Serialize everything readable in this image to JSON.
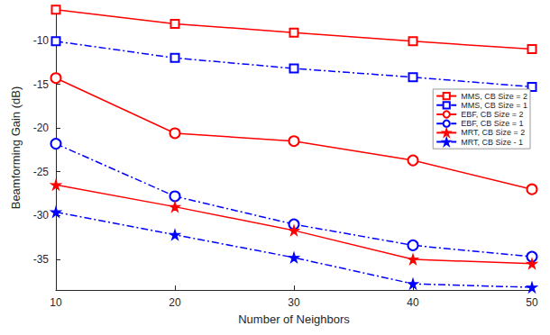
{
  "chart_data": {
    "type": "line",
    "x_label": "Number of Neighbors",
    "y_label": "Beamforming Gain (dB)",
    "x": [
      10,
      20,
      30,
      40,
      50
    ],
    "xlim": [
      10,
      50
    ],
    "xticks": [
      10,
      20,
      30,
      40,
      50
    ],
    "ylim": [
      -38.5,
      -6
    ],
    "yticks": [
      -35,
      -30,
      -25,
      -20,
      -15,
      -10
    ],
    "grid": false,
    "legend": "right",
    "series": [
      {
        "name": "MMS, CB Size = 2",
        "color": "#ff0000",
        "marker": "square",
        "line_style": "solid",
        "values": [
          -6.5,
          -8.1,
          -9.1,
          -10.1,
          -11.0
        ]
      },
      {
        "name": "MMS, CB Size = 1",
        "color": "#0000ff",
        "marker": "square",
        "line_style": "dashdot",
        "values": [
          -10.1,
          -12.0,
          -13.2,
          -14.2,
          -15.3
        ]
      },
      {
        "name": "EBF, CB Size = 2",
        "color": "#ff0000",
        "marker": "circle",
        "line_style": "solid",
        "values": [
          -14.3,
          -20.6,
          -21.5,
          -23.7,
          -27.0
        ]
      },
      {
        "name": "EBF, CB Size = 1",
        "color": "#0000ff",
        "marker": "circle",
        "line_style": "dashdot",
        "values": [
          -21.8,
          -27.8,
          -31.0,
          -33.4,
          -34.7
        ]
      },
      {
        "name": "MRT, CB Size = 2",
        "color": "#ff0000",
        "marker": "star",
        "line_style": "solid",
        "values": [
          -26.5,
          -29.0,
          -31.7,
          -35.0,
          -35.5
        ]
      },
      {
        "name": "MRT, CB Size - 1",
        "color": "#0000ff",
        "marker": "star",
        "line_style": "dashdot",
        "values": [
          -29.6,
          -32.2,
          -34.8,
          -37.8,
          -38.2
        ]
      }
    ]
  }
}
